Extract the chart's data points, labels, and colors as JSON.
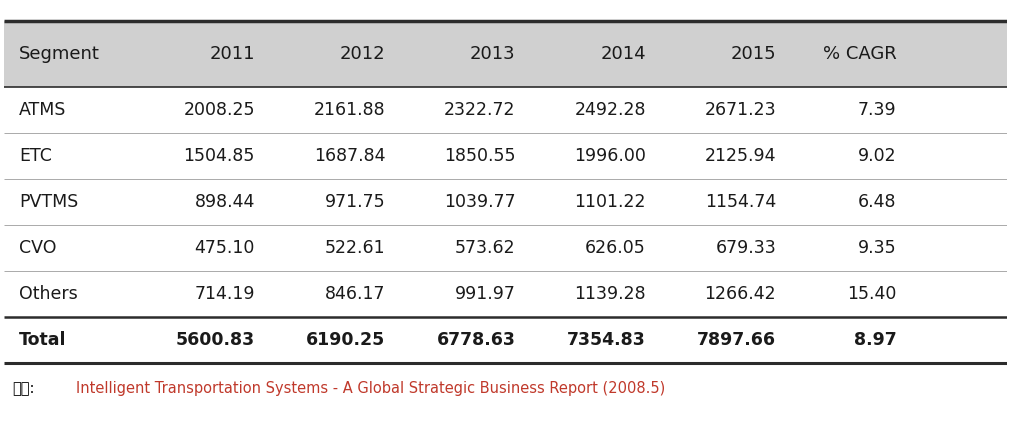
{
  "columns": [
    "Segment",
    "2011",
    "2012",
    "2013",
    "2014",
    "2015",
    "% CAGR"
  ],
  "rows": [
    [
      "ATMS",
      "2008.25",
      "2161.88",
      "2322.72",
      "2492.28",
      "2671.23",
      "7.39"
    ],
    [
      "ETC",
      "1504.85",
      "1687.84",
      "1850.55",
      "1996.00",
      "2125.94",
      "9.02"
    ],
    [
      "PVTMS",
      "898.44",
      "971.75",
      "1039.77",
      "1101.22",
      "1154.74",
      "6.48"
    ],
    [
      "CVO",
      "475.10",
      "522.61",
      "573.62",
      "626.05",
      "679.33",
      "9.35"
    ],
    [
      "Others",
      "714.19",
      "846.17",
      "991.97",
      "1139.28",
      "1266.42",
      "15.40"
    ],
    [
      "Total",
      "5600.83",
      "6190.25",
      "6778.63",
      "7354.83",
      "7897.66",
      "8.97"
    ]
  ],
  "header_bg": "#d0d0d0",
  "row_bg": "#ffffff",
  "footer_color_label": "#000000",
  "footer_color_value": "#c0392b",
  "outer_border_color": "#2c2c2c",
  "inner_line_color": "#aaaaaa",
  "total_sep_color": "#2c2c2c",
  "fig_bg": "#ffffff",
  "header_font_size": 13,
  "body_font_size": 12.5,
  "footer_font_size": 10.5
}
